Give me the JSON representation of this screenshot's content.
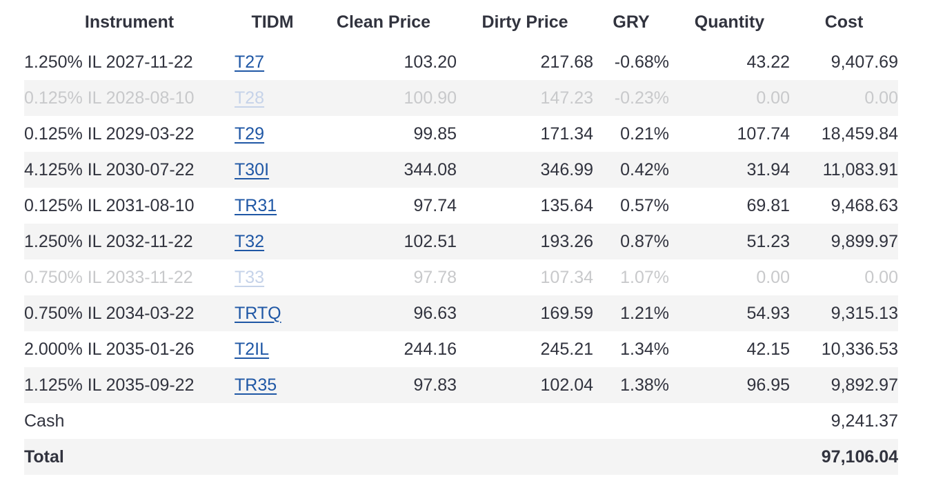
{
  "table": {
    "colors": {
      "text": "#31333e",
      "muted_text": "#c8c9cb",
      "link": "#1f57a5",
      "muted_link": "#c6d3e9",
      "stripe_bg": "#f4f4f4"
    },
    "columns": [
      {
        "key": "instrument",
        "label": "Instrument"
      },
      {
        "key": "tidm",
        "label": "TIDM"
      },
      {
        "key": "clean_price",
        "label": "Clean Price"
      },
      {
        "key": "dirty_price",
        "label": "Dirty Price"
      },
      {
        "key": "gry",
        "label": "GRY"
      },
      {
        "key": "quantity",
        "label": "Quantity"
      },
      {
        "key": "cost",
        "label": "Cost"
      }
    ],
    "rows": [
      {
        "instrument": "1.250% IL 2027-11-22",
        "tidm": "T27",
        "clean_price": "103.20",
        "dirty_price": "217.68",
        "gry": "-0.68%",
        "quantity": "43.22",
        "cost": "9,407.69",
        "muted": false
      },
      {
        "instrument": "0.125% IL 2028-08-10",
        "tidm": "T28",
        "clean_price": "100.90",
        "dirty_price": "147.23",
        "gry": "-0.23%",
        "quantity": "0.00",
        "cost": "0.00",
        "muted": true
      },
      {
        "instrument": "0.125% IL 2029-03-22",
        "tidm": "T29",
        "clean_price": "99.85",
        "dirty_price": "171.34",
        "gry": "0.21%",
        "quantity": "107.74",
        "cost": "18,459.84",
        "muted": false
      },
      {
        "instrument": "4.125% IL 2030-07-22",
        "tidm": "T30I",
        "clean_price": "344.08",
        "dirty_price": "346.99",
        "gry": "0.42%",
        "quantity": "31.94",
        "cost": "11,083.91",
        "muted": false
      },
      {
        "instrument": "0.125% IL 2031-08-10",
        "tidm": "TR31",
        "clean_price": "97.74",
        "dirty_price": "135.64",
        "gry": "0.57%",
        "quantity": "69.81",
        "cost": "9,468.63",
        "muted": false
      },
      {
        "instrument": "1.250% IL 2032-11-22",
        "tidm": "T32",
        "clean_price": "102.51",
        "dirty_price": "193.26",
        "gry": "0.87%",
        "quantity": "51.23",
        "cost": "9,899.97",
        "muted": false
      },
      {
        "instrument": "0.750% IL 2033-11-22",
        "tidm": "T33",
        "clean_price": "97.78",
        "dirty_price": "107.34",
        "gry": "1.07%",
        "quantity": "0.00",
        "cost": "0.00",
        "muted": true
      },
      {
        "instrument": "0.750% IL 2034-03-22",
        "tidm": "TRTQ",
        "clean_price": "96.63",
        "dirty_price": "169.59",
        "gry": "1.21%",
        "quantity": "54.93",
        "cost": "9,315.13",
        "muted": false
      },
      {
        "instrument": "2.000% IL 2035-01-26",
        "tidm": "T2IL",
        "clean_price": "244.16",
        "dirty_price": "245.21",
        "gry": "1.34%",
        "quantity": "42.15",
        "cost": "10,336.53",
        "muted": false
      },
      {
        "instrument": "1.125% IL 2035-09-22",
        "tidm": "TR35",
        "clean_price": "97.83",
        "dirty_price": "102.04",
        "gry": "1.38%",
        "quantity": "96.95",
        "cost": "9,892.97",
        "muted": false
      }
    ],
    "cash_row": {
      "label": "Cash",
      "cost": "9,241.37"
    },
    "total_row": {
      "label": "Total",
      "cost": "97,106.04"
    }
  }
}
